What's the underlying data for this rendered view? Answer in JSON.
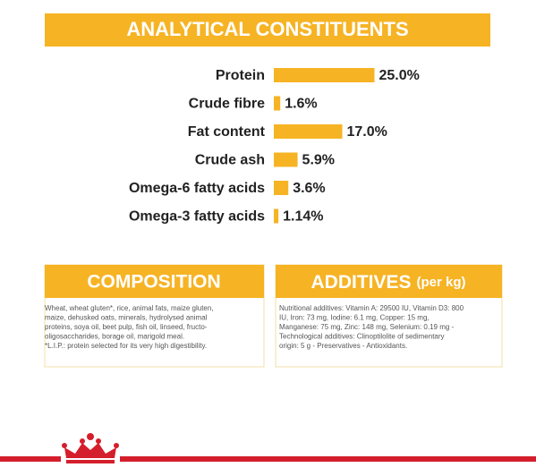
{
  "chart_data": {
    "type": "bar",
    "orientation": "horizontal",
    "title": "ANALYTICAL CONSTITUENTS",
    "categories": [
      "Protein",
      "Crude fibre",
      "Fat content",
      "Crude ash",
      "Omega-6 fatty acids",
      "Omega-3 fatty acids"
    ],
    "values": [
      25.0,
      1.6,
      17.0,
      5.9,
      3.6,
      1.14
    ],
    "value_labels": [
      "25.0%",
      "1.6%",
      "17.0%",
      "5.9%",
      "3.6%",
      "1.14%"
    ],
    "color": "#f6b324"
  },
  "composition": {
    "title": "COMPOSITION",
    "lines": [
      "Wheat, wheat gluten*, rice, animal fats, maize gluten,",
      "maize, dehusked oats, minerals, hydrolysed animal",
      "proteins, soya oil, beet pulp, fish oil, linseed, fructo-",
      "oligosaccharides, borage oil, marigold meal.",
      "*L.I.P.: protein selected for its very high digestibility."
    ]
  },
  "additives": {
    "title": "ADDITIVES",
    "subtitle": "(per kg)",
    "lines": [
      "Nutritional additives: Vitamin A: 29500 IU, Vitamin D3: 800",
      "IU, Iron: 73 mg, Iodine: 6.1 mg, Copper: 15 mg,",
      "Manganese: 75 mg, Zinc: 148 mg, Selenium: 0.19 mg -",
      "Technological additives: Clinoptilolite of sedimentary",
      "origin: 5 g - Preservatives - Antioxidants."
    ]
  }
}
